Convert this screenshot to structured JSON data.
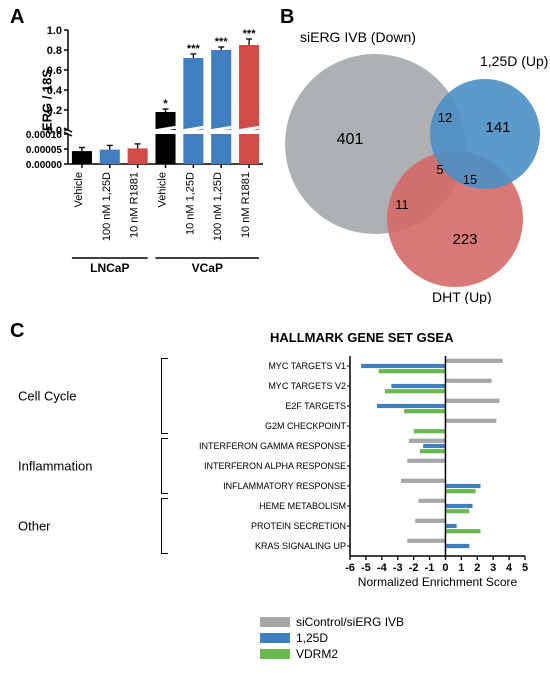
{
  "colors": {
    "black": "#000000",
    "blue": "#3f7fbf",
    "red": "#d14b48",
    "redFill": "#d14b48",
    "gray": "#a6a6a6",
    "green": "#6ab84e",
    "vennGray": "#a4a9ab",
    "vennBlue": "#4a8fc5",
    "vennRed": "#d56a67",
    "white": "#ffffff"
  },
  "panelA": {
    "type": "bar",
    "title_letter": "A",
    "y_label": "ERG / 18S",
    "upper_ylim": [
      0.0,
      1.0
    ],
    "upper_ticks": [
      0.0,
      0.2,
      0.4,
      0.6,
      0.8,
      1.0
    ],
    "lower_ylim": [
      0.0,
      0.0001
    ],
    "lower_ticks": [
      0.0,
      5e-05,
      0.0001
    ],
    "categories": [
      "Vehicle",
      "100 nM 1,25D",
      "10 nM R1881",
      "Vehicle",
      "10 nM 1,25D",
      "100 nM 1,25D",
      "10 nM R1881"
    ],
    "groups": [
      "LNCaP",
      "LNCaP",
      "LNCaP",
      "VCaP",
      "VCaP",
      "VCaP",
      "VCaP"
    ],
    "group_labels": [
      "LNCaP",
      "VCaP"
    ],
    "values": [
      4.3e-05,
      4.8e-05,
      5.2e-05,
      0.18,
      0.72,
      0.8,
      0.85
    ],
    "errors": [
      1.2e-05,
      1.4e-05,
      1.5e-05,
      0.03,
      0.04,
      0.03,
      0.06
    ],
    "bar_colors": [
      "#000000",
      "#3f7fbf",
      "#d14b48",
      "#000000",
      "#3f7fbf",
      "#3f7fbf",
      "#d14b48"
    ],
    "sig": [
      "",
      "",
      "",
      "*",
      "***",
      "***",
      "***"
    ],
    "bar_width": 0.72
  },
  "panelB": {
    "type": "venn3",
    "title_letter": "B",
    "sets": {
      "A": {
        "label": "siERG IVB (Down)",
        "color": "#a4a9ab"
      },
      "B": {
        "label": "1,25D (Up)",
        "color": "#4a8fc5"
      },
      "C": {
        "label": "DHT (Up)",
        "color": "#d56a67"
      }
    },
    "counts": {
      "A": 401,
      "B": 141,
      "C": 223,
      "AB": 12,
      "AC": 11,
      "BC": 15,
      "ABC": 5
    }
  },
  "panelC": {
    "type": "grouped_hbar",
    "title_letter": "C",
    "chart_title": "HALLMARK GENE SET GSEA",
    "x_label": "Normalized Enrichment Score",
    "xlim": [
      -6,
      5
    ],
    "xticks": [
      -6,
      -5,
      -4,
      -3,
      -2,
      -1,
      0,
      1,
      2,
      3,
      4,
      5
    ],
    "series": [
      {
        "name": "siControl/siERG IVB",
        "color": "#a6a6a6"
      },
      {
        "name": "1,25D",
        "color": "#3f7fbf"
      },
      {
        "name": "VDRM2",
        "color": "#6ab84e"
      }
    ],
    "categories": [
      {
        "group": "Cell Cycle",
        "label": "MYC TARGETS V1",
        "values": [
          3.6,
          -5.3,
          -4.2
        ]
      },
      {
        "group": "Cell Cycle",
        "label": "MYC TARGETS V2",
        "values": [
          2.9,
          -3.4,
          -3.8
        ]
      },
      {
        "group": "Cell Cycle",
        "label": "E2F TARGETS",
        "values": [
          3.4,
          -4.3,
          -2.6
        ]
      },
      {
        "group": "Cell Cycle",
        "label": "G2M CHECKPOINT",
        "values": [
          3.2,
          null,
          -2.0
        ]
      },
      {
        "group": "Inflammation",
        "label": "INTERFERON GAMMA RESPONSE",
        "values": [
          -2.3,
          -1.4,
          -1.6
        ]
      },
      {
        "group": "Inflammation",
        "label": "INTERFERON ALPHA RESPONSE",
        "values": [
          -2.4,
          null,
          null
        ]
      },
      {
        "group": "Inflammation",
        "label": "INFLAMMATORY RESPONSE",
        "values": [
          -2.8,
          2.2,
          1.9
        ]
      },
      {
        "group": "Other",
        "label": "HEME METABOLISM",
        "values": [
          -1.7,
          1.7,
          1.5
        ]
      },
      {
        "group": "Other",
        "label": "PROTEIN SECRETION",
        "values": [
          -1.9,
          0.7,
          2.2
        ]
      },
      {
        "group": "Other",
        "label": "KRAS SIGNALING UP",
        "values": [
          -2.4,
          1.5,
          null
        ]
      }
    ],
    "group_labels": [
      "Cell Cycle",
      "Inflammation",
      "Other"
    ]
  }
}
